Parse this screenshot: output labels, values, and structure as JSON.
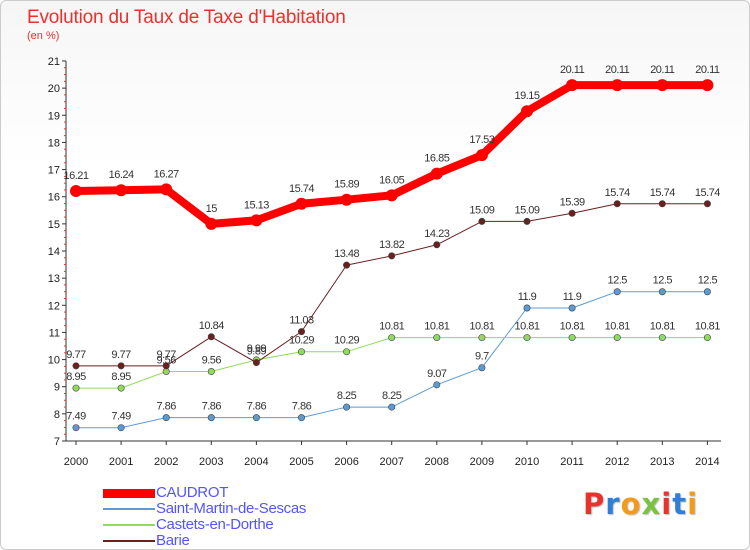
{
  "title": "Evolution du Taux de Taxe d'Habitation",
  "unit": "(en %)",
  "logo": {
    "text": "Proxiti",
    "colors": [
      "#e8322e",
      "#2f7fd8",
      "#f39a1b",
      "#7cc242",
      "#e8322e",
      "#2f7fd8",
      "#f39a1b"
    ]
  },
  "chart_data": {
    "type": "line",
    "x": [
      "2000",
      "2001",
      "2002",
      "2003",
      "2004",
      "2005",
      "2006",
      "2007",
      "2008",
      "2009",
      "2010",
      "2011",
      "2012",
      "2013",
      "2014"
    ],
    "ylim": [
      7,
      21
    ],
    "yticks": [
      "7",
      "8",
      "9",
      "10",
      "11",
      "12",
      "13",
      "14",
      "15",
      "16",
      "17",
      "18",
      "19",
      "20",
      "21"
    ],
    "grid": false,
    "legend_position": "bottom-left",
    "series": [
      {
        "name": "CAUDROT",
        "color": "#ff0000",
        "width": 8,
        "values": [
          16.21,
          16.24,
          16.27,
          15,
          15.13,
          15.74,
          15.89,
          16.05,
          16.85,
          17.53,
          19.15,
          20.11,
          20.11,
          20.11,
          20.11
        ],
        "labels": [
          "16.21",
          "16.24",
          "16.27",
          "15",
          "15.13",
          "15.74",
          "15.89",
          "16.05",
          "16.85",
          "17.53",
          "19.15",
          "20.11",
          "20.11",
          "20.11",
          "20.11"
        ]
      },
      {
        "name": "Saint-Martin-de-Sescas",
        "color": "#5b9bd5",
        "width": 1,
        "values": [
          7.49,
          7.49,
          7.86,
          7.86,
          7.86,
          7.86,
          8.25,
          8.25,
          9.07,
          9.7,
          11.9,
          11.9,
          12.5,
          12.5,
          12.5
        ],
        "labels": [
          "7.49",
          "7.49",
          "7.86",
          "7.86",
          "7.86",
          "7.86",
          "8.25",
          "8.25",
          "9.07",
          "9.7",
          "11.9",
          "11.9",
          "12.5",
          "12.5",
          "12.5"
        ]
      },
      {
        "name": "Castets-en-Dorthe",
        "color": "#8fdc5a",
        "width": 1,
        "values": [
          8.95,
          8.95,
          9.56,
          9.56,
          9.99,
          10.29,
          10.29,
          10.81,
          10.81,
          10.81,
          10.81,
          10.81,
          10.81,
          10.81,
          10.81
        ],
        "labels": [
          "8.95",
          "8.95",
          "9.56",
          "9.56",
          "9.99",
          "10.29",
          "10.29",
          "10.81",
          "10.81",
          "10.81",
          "10.81",
          "10.81",
          "10.81",
          "10.81",
          "10.81"
        ]
      },
      {
        "name": "Barie",
        "color": "#6b1f1f",
        "width": 1,
        "values": [
          9.77,
          9.77,
          9.77,
          10.84,
          9.89,
          11.03,
          13.48,
          13.82,
          14.23,
          15.09,
          15.09,
          15.39,
          15.74,
          15.74,
          15.74
        ],
        "labels": [
          "9.77",
          "9.77",
          "9.77",
          "10.84",
          "9.89",
          "11.03",
          "13.48",
          "13.82",
          "14.23",
          "15.09",
          "15.09",
          "15.39",
          "15.74",
          "15.74",
          "15.74"
        ]
      }
    ]
  }
}
